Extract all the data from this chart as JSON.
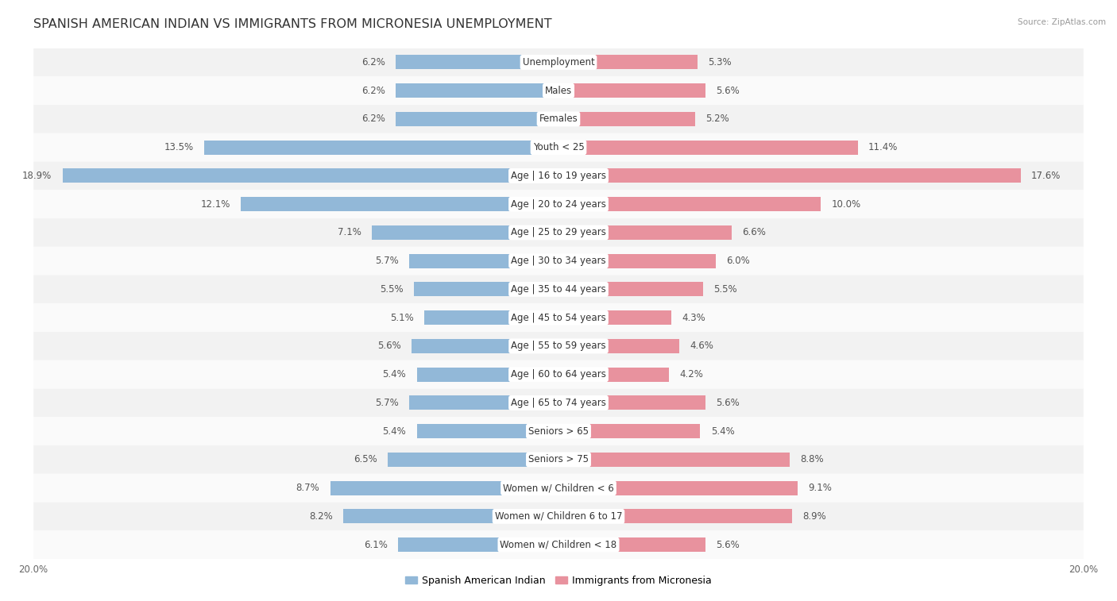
{
  "title": "SPANISH AMERICAN INDIAN VS IMMIGRANTS FROM MICRONESIA UNEMPLOYMENT",
  "source": "Source: ZipAtlas.com",
  "categories": [
    "Unemployment",
    "Males",
    "Females",
    "Youth < 25",
    "Age | 16 to 19 years",
    "Age | 20 to 24 years",
    "Age | 25 to 29 years",
    "Age | 30 to 34 years",
    "Age | 35 to 44 years",
    "Age | 45 to 54 years",
    "Age | 55 to 59 years",
    "Age | 60 to 64 years",
    "Age | 65 to 74 years",
    "Seniors > 65",
    "Seniors > 75",
    "Women w/ Children < 6",
    "Women w/ Children 6 to 17",
    "Women w/ Children < 18"
  ],
  "left_values": [
    6.2,
    6.2,
    6.2,
    13.5,
    18.9,
    12.1,
    7.1,
    5.7,
    5.5,
    5.1,
    5.6,
    5.4,
    5.7,
    5.4,
    6.5,
    8.7,
    8.2,
    6.1
  ],
  "right_values": [
    5.3,
    5.6,
    5.2,
    11.4,
    17.6,
    10.0,
    6.6,
    6.0,
    5.5,
    4.3,
    4.6,
    4.2,
    5.6,
    5.4,
    8.8,
    9.1,
    8.9,
    5.6
  ],
  "left_color": "#92b8d8",
  "right_color": "#e8929e",
  "left_label": "Spanish American Indian",
  "right_label": "Immigrants from Micronesia",
  "axis_limit": 20.0,
  "background_color": "#ffffff",
  "row_bg_odd": "#f2f2f2",
  "row_bg_even": "#fafafa",
  "title_fontsize": 11.5,
  "label_fontsize": 8.5,
  "value_fontsize": 8.5
}
